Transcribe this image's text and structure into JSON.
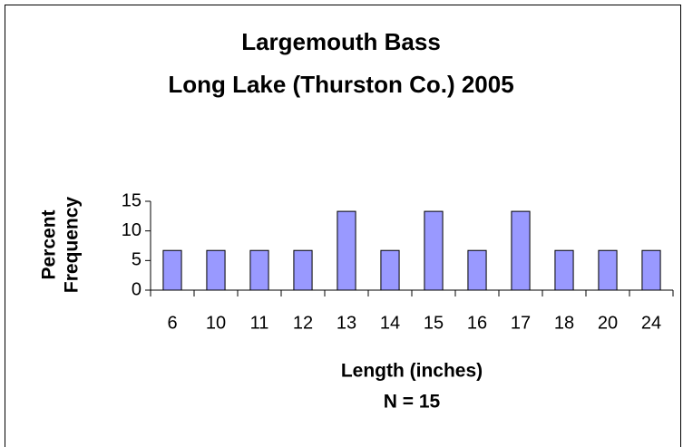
{
  "chart_data": {
    "type": "bar",
    "title": [
      "Largemouth Bass",
      "Long Lake (Thurston Co.) 2005"
    ],
    "ylabel": [
      "Percent",
      "Frequency"
    ],
    "xlabel": "Length (inches)",
    "annotation": "N = 15",
    "categories": [
      "6",
      "10",
      "11",
      "12",
      "13",
      "14",
      "15",
      "16",
      "17",
      "18",
      "20",
      "24"
    ],
    "values": [
      6.7,
      6.7,
      6.7,
      6.7,
      13.3,
      6.7,
      13.3,
      6.7,
      13.3,
      6.7,
      6.7,
      6.7
    ],
    "color": "#9999ff",
    "ylim": [
      0,
      15
    ],
    "yticks": [
      0,
      5,
      10,
      15
    ],
    "grid": false
  }
}
